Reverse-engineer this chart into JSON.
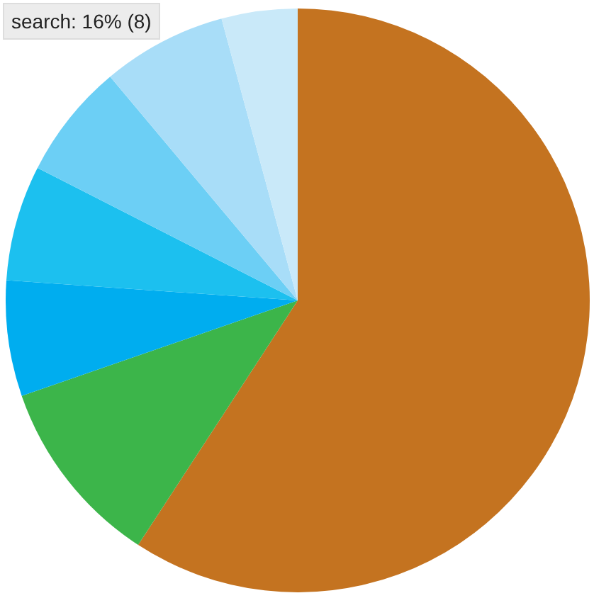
{
  "chart_data": {
    "type": "pie",
    "categories": [
      null,
      null,
      null,
      null,
      null,
      null,
      null
    ],
    "values": [
      59.2,
      10.5,
      6.4,
      6.4,
      6.4,
      6.9,
      4.2
    ],
    "colors": [
      "#c47320",
      "#3cb54a",
      "#00adef",
      "#1cc0ef",
      "#6ccff5",
      "#a8ddf8",
      "#c9e9f9"
    ],
    "annotations": [
      "search: 16% (8)"
    ]
  }
}
